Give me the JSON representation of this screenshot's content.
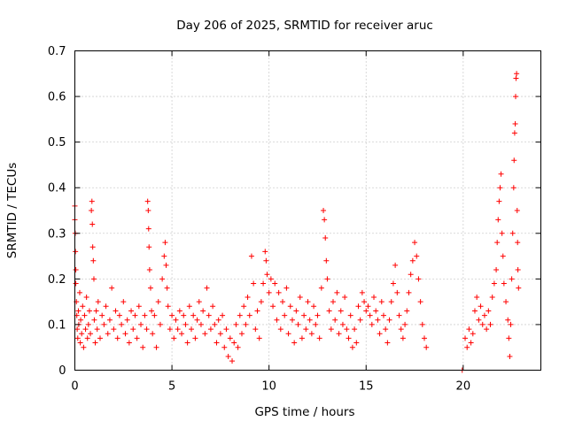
{
  "chart_data": {
    "type": "scatter",
    "title": "Day 206 of 2025, SRMTID for receiver aruc",
    "xlabel": "GPS time / hours",
    "ylabel": "SRMTID / TECUs",
    "xlim": [
      0,
      24
    ],
    "ylim": [
      0,
      0.7
    ],
    "xticks": [
      0,
      5,
      10,
      15,
      20
    ],
    "xtick_labels": [
      "0",
      "5",
      "10",
      "15",
      "20"
    ],
    "yticks": [
      0,
      0.1,
      0.2,
      0.3,
      0.4,
      0.5,
      0.6,
      0.7
    ],
    "ytick_labels": [
      "0",
      "0.1",
      "0.2",
      "0.3",
      "0.4",
      "0.5",
      "0.6",
      "0.7"
    ],
    "grid": true,
    "marker": "+",
    "color": "#ff0000",
    "series": [
      {
        "name": "SRMTID",
        "points": [
          [
            0.0,
            0.36
          ],
          [
            0.0,
            0.33
          ],
          [
            0.02,
            0.3
          ],
          [
            0.03,
            0.26
          ],
          [
            0.05,
            0.22
          ],
          [
            0.05,
            0.19
          ],
          [
            0.08,
            0.15
          ],
          [
            0.1,
            0.12
          ],
          [
            0.12,
            0.09
          ],
          [
            0.15,
            0.07
          ],
          [
            0.18,
            0.13
          ],
          [
            0.2,
            0.1
          ],
          [
            0.25,
            0.17
          ],
          [
            0.28,
            0.06
          ],
          [
            0.3,
            0.11
          ],
          [
            0.35,
            0.08
          ],
          [
            0.4,
            0.14
          ],
          [
            0.45,
            0.05
          ],
          [
            0.5,
            0.12
          ],
          [
            0.55,
            0.09
          ],
          [
            0.6,
            0.16
          ],
          [
            0.65,
            0.07
          ],
          [
            0.7,
            0.1
          ],
          [
            0.75,
            0.13
          ],
          [
            0.8,
            0.08
          ],
          [
            0.85,
            0.35
          ],
          [
            0.88,
            0.37
          ],
          [
            0.9,
            0.32
          ],
          [
            0.92,
            0.27
          ],
          [
            0.95,
            0.24
          ],
          [
            0.98,
            0.2
          ],
          [
            1.0,
            0.11
          ],
          [
            1.05,
            0.06
          ],
          [
            1.1,
            0.13
          ],
          [
            1.15,
            0.09
          ],
          [
            1.2,
            0.15
          ],
          [
            1.3,
            0.07
          ],
          [
            1.4,
            0.12
          ],
          [
            1.5,
            0.1
          ],
          [
            1.6,
            0.14
          ],
          [
            1.7,
            0.08
          ],
          [
            1.8,
            0.11
          ],
          [
            1.9,
            0.18
          ],
          [
            2.0,
            0.09
          ],
          [
            2.1,
            0.13
          ],
          [
            2.2,
            0.07
          ],
          [
            2.3,
            0.12
          ],
          [
            2.4,
            0.1
          ],
          [
            2.5,
            0.15
          ],
          [
            2.6,
            0.08
          ],
          [
            2.7,
            0.11
          ],
          [
            2.8,
            0.06
          ],
          [
            2.9,
            0.13
          ],
          [
            3.0,
            0.09
          ],
          [
            3.1,
            0.12
          ],
          [
            3.2,
            0.07
          ],
          [
            3.3,
            0.14
          ],
          [
            3.4,
            0.1
          ],
          [
            3.5,
            0.05
          ],
          [
            3.6,
            0.12
          ],
          [
            3.7,
            0.09
          ],
          [
            3.75,
            0.37
          ],
          [
            3.78,
            0.35
          ],
          [
            3.8,
            0.31
          ],
          [
            3.82,
            0.27
          ],
          [
            3.85,
            0.22
          ],
          [
            3.9,
            0.18
          ],
          [
            3.95,
            0.13
          ],
          [
            4.0,
            0.08
          ],
          [
            4.1,
            0.12
          ],
          [
            4.2,
            0.05
          ],
          [
            4.3,
            0.15
          ],
          [
            4.4,
            0.1
          ],
          [
            4.5,
            0.2
          ],
          [
            4.6,
            0.25
          ],
          [
            4.65,
            0.28
          ],
          [
            4.7,
            0.23
          ],
          [
            4.75,
            0.18
          ],
          [
            4.8,
            0.14
          ],
          [
            4.9,
            0.09
          ],
          [
            5.0,
            0.12
          ],
          [
            5.1,
            0.07
          ],
          [
            5.2,
            0.11
          ],
          [
            5.3,
            0.09
          ],
          [
            5.4,
            0.13
          ],
          [
            5.5,
            0.08
          ],
          [
            5.6,
            0.12
          ],
          [
            5.7,
            0.1
          ],
          [
            5.8,
            0.06
          ],
          [
            5.9,
            0.14
          ],
          [
            6.0,
            0.09
          ],
          [
            6.1,
            0.12
          ],
          [
            6.2,
            0.07
          ],
          [
            6.3,
            0.11
          ],
          [
            6.4,
            0.15
          ],
          [
            6.5,
            0.1
          ],
          [
            6.6,
            0.13
          ],
          [
            6.7,
            0.08
          ],
          [
            6.8,
            0.18
          ],
          [
            6.9,
            0.12
          ],
          [
            7.0,
            0.09
          ],
          [
            7.1,
            0.14
          ],
          [
            7.2,
            0.1
          ],
          [
            7.3,
            0.06
          ],
          [
            7.4,
            0.11
          ],
          [
            7.5,
            0.08
          ],
          [
            7.6,
            0.12
          ],
          [
            7.7,
            0.05
          ],
          [
            7.8,
            0.09
          ],
          [
            7.9,
            0.03
          ],
          [
            8.0,
            0.07
          ],
          [
            8.1,
            0.02
          ],
          [
            8.2,
            0.06
          ],
          [
            8.3,
            0.1
          ],
          [
            8.4,
            0.05
          ],
          [
            8.5,
            0.12
          ],
          [
            8.6,
            0.08
          ],
          [
            8.7,
            0.14
          ],
          [
            8.8,
            0.1
          ],
          [
            8.9,
            0.16
          ],
          [
            9.0,
            0.12
          ],
          [
            9.1,
            0.25
          ],
          [
            9.2,
            0.19
          ],
          [
            9.3,
            0.09
          ],
          [
            9.4,
            0.13
          ],
          [
            9.5,
            0.07
          ],
          [
            9.6,
            0.15
          ],
          [
            9.7,
            0.19
          ],
          [
            9.8,
            0.26
          ],
          [
            9.85,
            0.24
          ],
          [
            9.9,
            0.21
          ],
          [
            10.0,
            0.17
          ],
          [
            10.1,
            0.2
          ],
          [
            10.2,
            0.14
          ],
          [
            10.3,
            0.19
          ],
          [
            10.4,
            0.11
          ],
          [
            10.5,
            0.17
          ],
          [
            10.6,
            0.09
          ],
          [
            10.7,
            0.15
          ],
          [
            10.8,
            0.12
          ],
          [
            10.9,
            0.18
          ],
          [
            11.0,
            0.08
          ],
          [
            11.1,
            0.14
          ],
          [
            11.2,
            0.11
          ],
          [
            11.3,
            0.06
          ],
          [
            11.4,
            0.13
          ],
          [
            11.5,
            0.1
          ],
          [
            11.6,
            0.16
          ],
          [
            11.7,
            0.07
          ],
          [
            11.8,
            0.12
          ],
          [
            11.9,
            0.09
          ],
          [
            12.0,
            0.15
          ],
          [
            12.1,
            0.11
          ],
          [
            12.2,
            0.08
          ],
          [
            12.3,
            0.14
          ],
          [
            12.4,
            0.1
          ],
          [
            12.5,
            0.12
          ],
          [
            12.6,
            0.07
          ],
          [
            12.7,
            0.18
          ],
          [
            12.8,
            0.35
          ],
          [
            12.85,
            0.33
          ],
          [
            12.9,
            0.29
          ],
          [
            12.95,
            0.24
          ],
          [
            13.0,
            0.2
          ],
          [
            13.1,
            0.13
          ],
          [
            13.2,
            0.09
          ],
          [
            13.3,
            0.15
          ],
          [
            13.4,
            0.11
          ],
          [
            13.5,
            0.17
          ],
          [
            13.6,
            0.08
          ],
          [
            13.7,
            0.13
          ],
          [
            13.8,
            0.1
          ],
          [
            13.9,
            0.16
          ],
          [
            14.0,
            0.09
          ],
          [
            14.1,
            0.07
          ],
          [
            14.2,
            0.12
          ],
          [
            14.3,
            0.05
          ],
          [
            14.4,
            0.09
          ],
          [
            14.5,
            0.06
          ],
          [
            14.6,
            0.14
          ],
          [
            14.7,
            0.11
          ],
          [
            14.8,
            0.17
          ],
          [
            14.9,
            0.15
          ],
          [
            15.0,
            0.13
          ],
          [
            15.1,
            0.14
          ],
          [
            15.2,
            0.12
          ],
          [
            15.3,
            0.1
          ],
          [
            15.4,
            0.16
          ],
          [
            15.5,
            0.13
          ],
          [
            15.6,
            0.11
          ],
          [
            15.7,
            0.08
          ],
          [
            15.8,
            0.15
          ],
          [
            15.9,
            0.12
          ],
          [
            16.0,
            0.09
          ],
          [
            16.1,
            0.06
          ],
          [
            16.2,
            0.11
          ],
          [
            16.3,
            0.15
          ],
          [
            16.4,
            0.19
          ],
          [
            16.5,
            0.23
          ],
          [
            16.6,
            0.17
          ],
          [
            16.7,
            0.12
          ],
          [
            16.8,
            0.09
          ],
          [
            16.9,
            0.07
          ],
          [
            17.0,
            0.1
          ],
          [
            17.1,
            0.13
          ],
          [
            17.2,
            0.17
          ],
          [
            17.3,
            0.21
          ],
          [
            17.4,
            0.24
          ],
          [
            17.5,
            0.28
          ],
          [
            17.6,
            0.25
          ],
          [
            17.7,
            0.2
          ],
          [
            17.8,
            0.15
          ],
          [
            17.9,
            0.1
          ],
          [
            18.0,
            0.07
          ],
          [
            18.1,
            0.05
          ],
          [
            19.95,
            0.0
          ],
          [
            20.1,
            0.07
          ],
          [
            20.2,
            0.05
          ],
          [
            20.3,
            0.09
          ],
          [
            20.4,
            0.06
          ],
          [
            20.5,
            0.08
          ],
          [
            20.6,
            0.13
          ],
          [
            20.7,
            0.16
          ],
          [
            20.8,
            0.11
          ],
          [
            20.9,
            0.14
          ],
          [
            21.0,
            0.1
          ],
          [
            21.1,
            0.12
          ],
          [
            21.2,
            0.09
          ],
          [
            21.3,
            0.13
          ],
          [
            21.4,
            0.1
          ],
          [
            21.5,
            0.16
          ],
          [
            21.6,
            0.19
          ],
          [
            21.7,
            0.22
          ],
          [
            21.75,
            0.28
          ],
          [
            21.8,
            0.33
          ],
          [
            21.85,
            0.37
          ],
          [
            21.9,
            0.4
          ],
          [
            21.95,
            0.43
          ],
          [
            22.0,
            0.3
          ],
          [
            22.05,
            0.25
          ],
          [
            22.1,
            0.19
          ],
          [
            22.2,
            0.15
          ],
          [
            22.3,
            0.11
          ],
          [
            22.35,
            0.07
          ],
          [
            22.4,
            0.03
          ],
          [
            22.45,
            0.1
          ],
          [
            22.5,
            0.2
          ],
          [
            22.55,
            0.3
          ],
          [
            22.6,
            0.4
          ],
          [
            22.62,
            0.46
          ],
          [
            22.65,
            0.52
          ],
          [
            22.68,
            0.54
          ],
          [
            22.7,
            0.6
          ],
          [
            22.72,
            0.64
          ],
          [
            22.75,
            0.65
          ],
          [
            22.78,
            0.35
          ],
          [
            22.8,
            0.28
          ],
          [
            22.82,
            0.22
          ],
          [
            22.85,
            0.18
          ]
        ]
      }
    ]
  }
}
